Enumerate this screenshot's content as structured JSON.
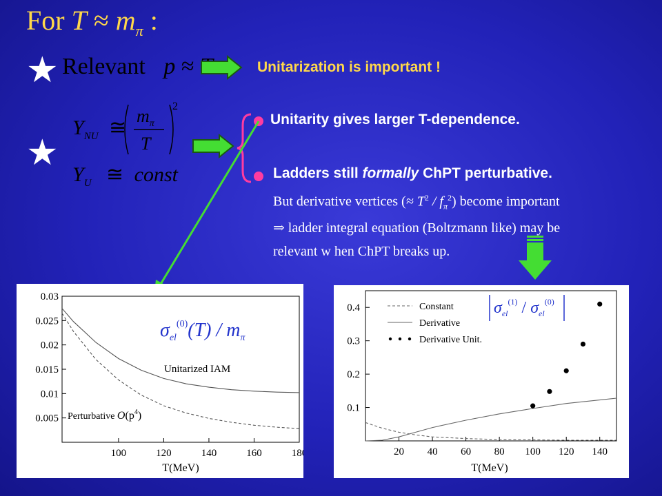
{
  "title": {
    "prefix": "For",
    "var_t": "T",
    "approx": "≈",
    "var_m": "m",
    "sub": "π",
    "colon": ":"
  },
  "row1": {
    "relevant": "Relevant",
    "p": "p",
    "approx": "≈",
    "t": "T",
    "note": "Unitarization is important !"
  },
  "row2": {
    "y": "Y",
    "sub_nu": "NU",
    "sub_u": "U",
    "cong": "≅",
    "m": "m",
    "pi": "π",
    "t": "T",
    "exp": "2",
    "const": "const",
    "bullet1": "Unitarity gives larger T-dependence.",
    "bullet2_a": "Ladders still ",
    "bullet2_b": "formally",
    "bullet2_c": " ChPT perturbative.",
    "line1_a": "But derivative  vertices  (",
    "line1_b": "≈ T",
    "line1_c": "2",
    "line1_d": " / f",
    "line1_e": "π",
    "line1_f": "2",
    "line1_g": ") become important",
    "line2_a": "⇒",
    "line2_b": " ladder integral  equation  (Boltzmann  like)  may be",
    "line3": "relevant w hen ChPT breaks up."
  },
  "colors": {
    "accent_yellow": "#ffd84a",
    "arrow_green": "#44dd33",
    "bullet_pink": "#ff3ca0",
    "background": "#2424c0"
  },
  "chart_data": [
    {
      "type": "line",
      "annotation": {
        "sigma": "σ",
        "el": "el",
        "sup": "(0)",
        "rest": "(T) / m",
        "pi": "π"
      },
      "xlabel": "T(MeV)",
      "xlim": [
        75,
        180
      ],
      "ylim": [
        0,
        0.03
      ],
      "x_ticks": [
        "100",
        "120",
        "140",
        "160",
        "180"
      ],
      "y_ticks": [
        "0.005",
        "0.01",
        "0.015",
        "0.02",
        "0.025",
        "0.03"
      ],
      "series": [
        {
          "name": "Unitarized IAM",
          "style": "solid",
          "x": [
            75,
            80,
            90,
            100,
            110,
            120,
            130,
            140,
            150,
            160,
            170,
            180
          ],
          "y": [
            0.0275,
            0.0248,
            0.0205,
            0.0172,
            0.0148,
            0.0131,
            0.012,
            0.0113,
            0.0108,
            0.0105,
            0.0103,
            0.0102
          ]
        },
        {
          "name": "Perturbative O(p⁴)",
          "style": "dashed",
          "x": [
            75,
            80,
            90,
            100,
            110,
            120,
            130,
            140,
            150,
            160,
            170,
            180
          ],
          "y": [
            0.0265,
            0.0228,
            0.017,
            0.0128,
            0.0097,
            0.0075,
            0.006,
            0.0049,
            0.0041,
            0.0035,
            0.0031,
            0.0028
          ]
        }
      ],
      "labels": {
        "iam": "Unitarized IAM",
        "pert": "Perturbative",
        "order_o": "O",
        "order_p": "(p",
        "order_exp": "4",
        "order_close": ")"
      }
    },
    {
      "type": "line",
      "annotation": {
        "sigma": "σ",
        "el": "el",
        "sup1": "(1)",
        "slash": "/",
        "sup0": "(0)"
      },
      "xlabel": "T(MeV)",
      "xlim": [
        0,
        150
      ],
      "ylim": [
        0,
        0.45
      ],
      "x_ticks": [
        "20",
        "40",
        "60",
        "80",
        "100",
        "120",
        "140"
      ],
      "y_ticks": [
        "0.1",
        "0.2",
        "0.3",
        "0.4"
      ],
      "legend": [
        "Constant",
        "Derivative",
        "Derivative Unit."
      ],
      "series": [
        {
          "name": "Constant",
          "style": "dashed",
          "x": [
            0,
            10,
            20,
            30,
            40,
            60,
            80,
            100,
            120,
            150
          ],
          "y": [
            0.055,
            0.038,
            0.026,
            0.018,
            0.012,
            0.007,
            0.004,
            0.003,
            0.002,
            0.002
          ]
        },
        {
          "name": "Derivative",
          "style": "solid",
          "x": [
            0,
            10,
            20,
            30,
            40,
            60,
            80,
            100,
            120,
            150
          ],
          "y": [
            0.0,
            0.002,
            0.012,
            0.026,
            0.04,
            0.062,
            0.081,
            0.097,
            0.112,
            0.128
          ]
        },
        {
          "name": "Derivative Unit.",
          "style": "points",
          "x": [
            100,
            110,
            120,
            130,
            140
          ],
          "y": [
            0.105,
            0.148,
            0.21,
            0.29,
            0.41
          ]
        }
      ]
    }
  ]
}
